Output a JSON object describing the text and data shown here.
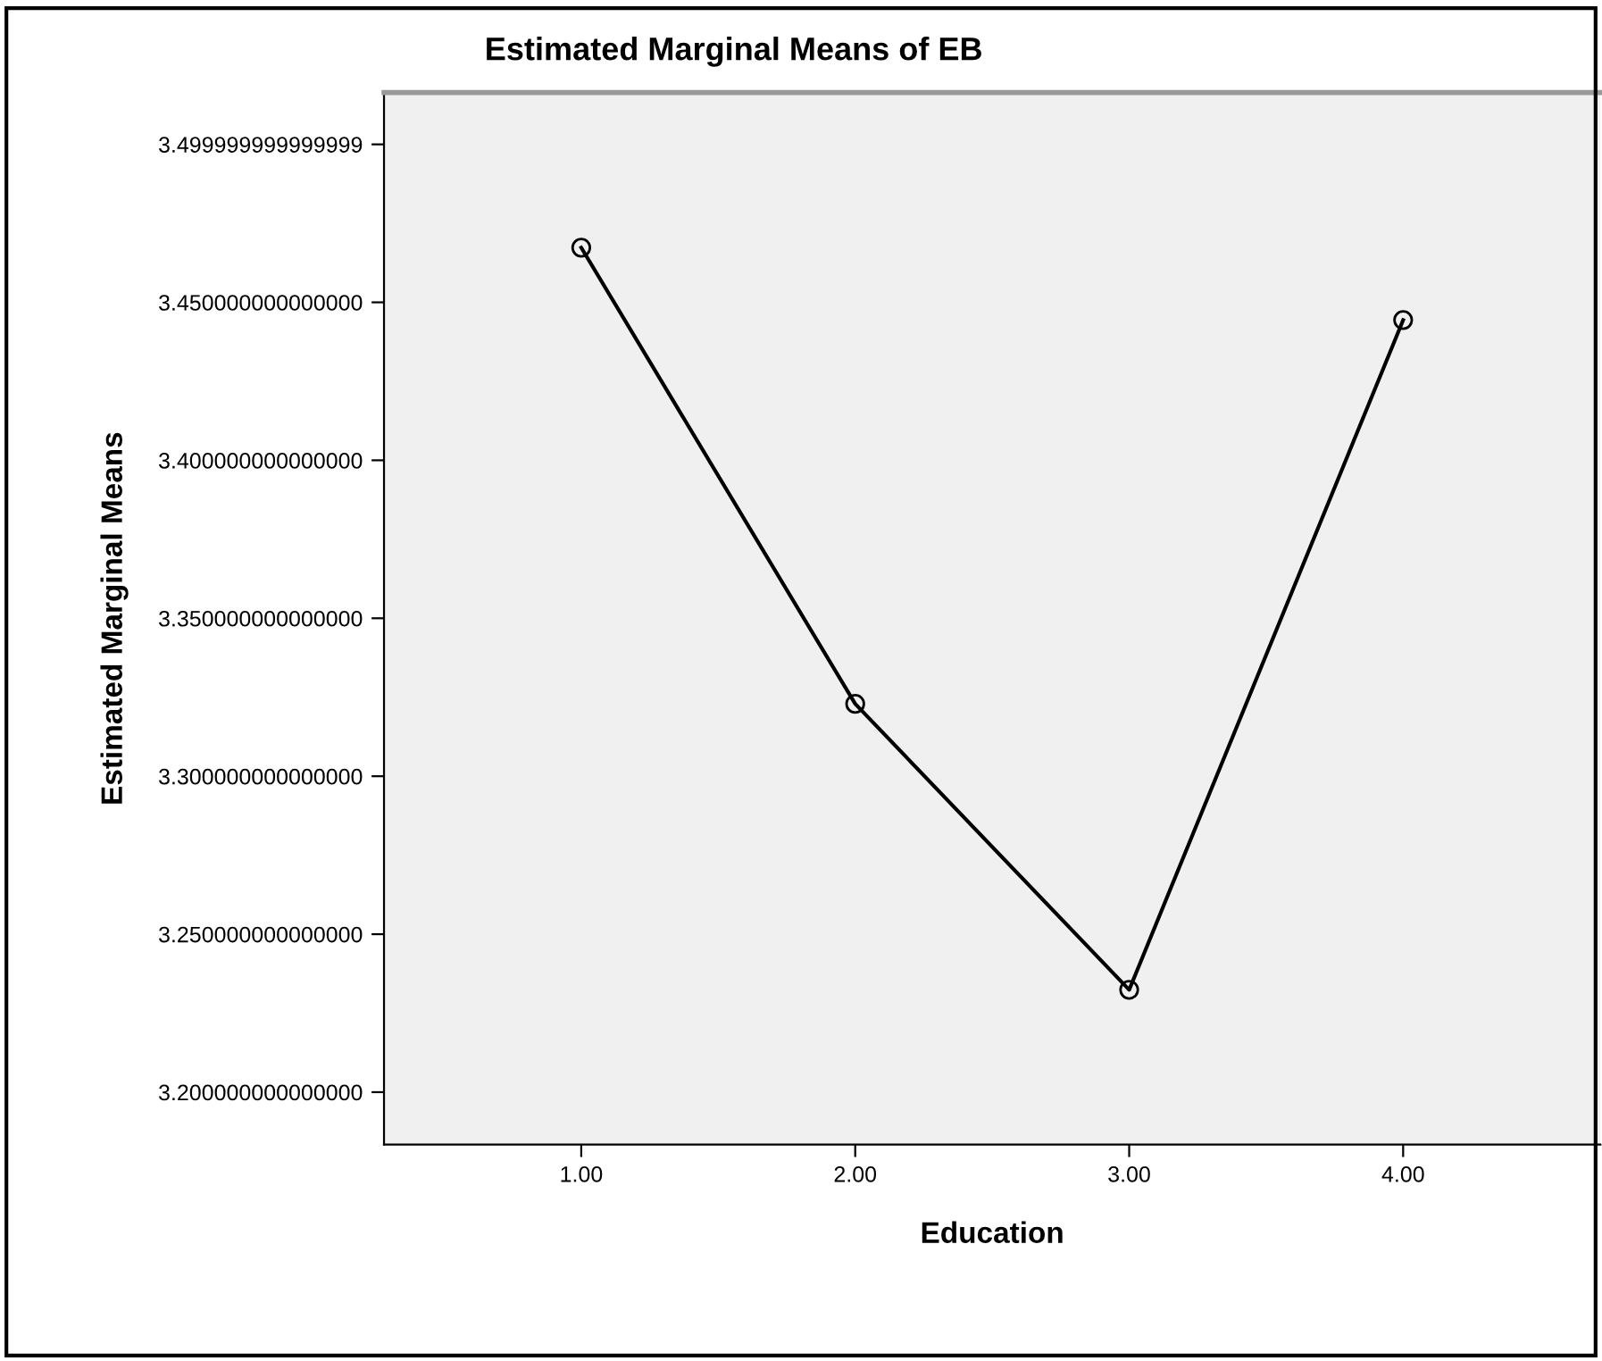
{
  "chart_data": {
    "type": "line",
    "title": "Estimated Marginal Means of EB",
    "xlabel": "Education",
    "ylabel": "Estimated Marginal Means",
    "x": [
      1,
      2,
      3,
      4
    ],
    "series": [
      {
        "color": "#000000",
        "values": [
          3.4673,
          3.3229,
          3.2324,
          3.4444
        ]
      }
    ],
    "xlim": [
      0.28,
      4.72
    ],
    "xticks": [
      {
        "value": 1,
        "label": "1.00"
      },
      {
        "value": 2,
        "label": "2.00"
      },
      {
        "value": 3,
        "label": "3.00"
      },
      {
        "value": 4,
        "label": "4.00"
      }
    ],
    "ylim": [
      3.1834,
      3.5164
    ],
    "yticks": [
      {
        "value": 3.2,
        "label": "3.200000000000000"
      },
      {
        "value": 3.25,
        "label": "3.250000000000000"
      },
      {
        "value": 3.3,
        "label": "3.300000000000000"
      },
      {
        "value": 3.35,
        "label": "3.350000000000000"
      },
      {
        "value": 3.4,
        "label": "3.400000000000000"
      },
      {
        "value": 3.45,
        "label": "3.450000000000000"
      },
      {
        "value": 3.5,
        "label": "3.499999999999999"
      }
    ],
    "marker": "circle",
    "line_style": "solid",
    "grid": false,
    "legend": false
  }
}
